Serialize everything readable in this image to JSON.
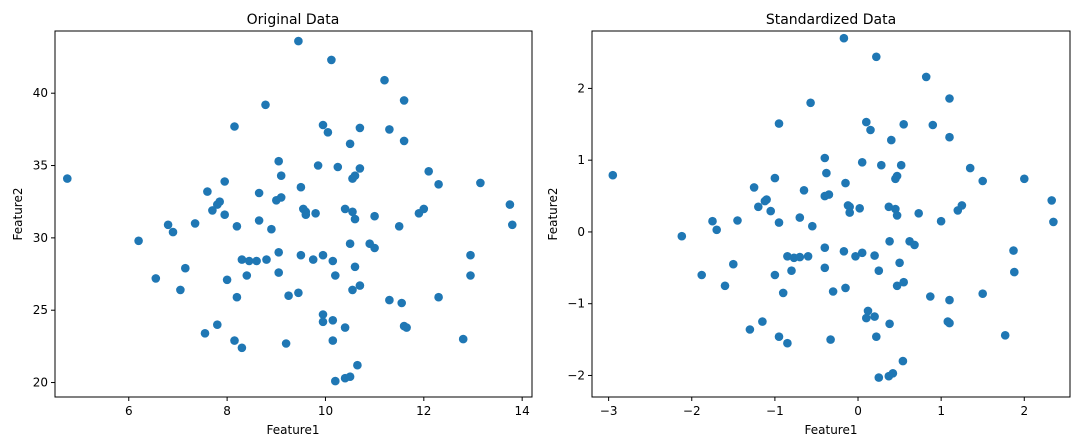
{
  "colors": {
    "marker": "#1f77b4"
  },
  "chart_data": [
    {
      "type": "scatter",
      "title": "Original Data",
      "xlabel": "Feature1",
      "ylabel": "Feature2",
      "xlim": [
        4.5,
        14.2
      ],
      "ylim": [
        19.0,
        44.3
      ],
      "xticks": [
        6,
        8,
        10,
        12,
        14
      ],
      "yticks": [
        20,
        25,
        30,
        35,
        40
      ],
      "grid": false,
      "points": [
        [
          9.45,
          43.6
        ],
        [
          10.12,
          42.3
        ],
        [
          11.2,
          40.9
        ],
        [
          11.6,
          39.5
        ],
        [
          8.78,
          39.2
        ],
        [
          8.15,
          37.7
        ],
        [
          9.95,
          37.8
        ],
        [
          10.05,
          37.3
        ],
        [
          10.7,
          37.6
        ],
        [
          11.3,
          37.5
        ],
        [
          10.5,
          36.5
        ],
        [
          11.6,
          36.7
        ],
        [
          9.05,
          35.3
        ],
        [
          9.85,
          35.0
        ],
        [
          10.25,
          34.9
        ],
        [
          10.7,
          34.8
        ],
        [
          4.75,
          34.1
        ],
        [
          9.1,
          34.3
        ],
        [
          10.55,
          34.1
        ],
        [
          10.6,
          34.3
        ],
        [
          12.1,
          34.6
        ],
        [
          12.3,
          33.7
        ],
        [
          13.15,
          33.8
        ],
        [
          7.95,
          33.9
        ],
        [
          7.6,
          33.2
        ],
        [
          9.5,
          33.5
        ],
        [
          8.65,
          33.1
        ],
        [
          7.85,
          32.5
        ],
        [
          7.8,
          32.3
        ],
        [
          9.0,
          32.6
        ],
        [
          9.1,
          32.8
        ],
        [
          7.7,
          31.9
        ],
        [
          7.95,
          31.6
        ],
        [
          9.6,
          31.8
        ],
        [
          9.8,
          31.7
        ],
        [
          9.55,
          32.0
        ],
        [
          10.4,
          32.0
        ],
        [
          10.55,
          31.8
        ],
        [
          10.6,
          31.3
        ],
        [
          11.0,
          31.5
        ],
        [
          11.9,
          31.7
        ],
        [
          12.0,
          32.0
        ],
        [
          13.75,
          32.3
        ],
        [
          6.8,
          30.9
        ],
        [
          7.35,
          31.0
        ],
        [
          8.2,
          30.8
        ],
        [
          8.65,
          31.2
        ],
        [
          8.9,
          30.6
        ],
        [
          9.6,
          31.6
        ],
        [
          11.5,
          30.8
        ],
        [
          13.8,
          30.9
        ],
        [
          6.9,
          30.4
        ],
        [
          6.2,
          29.8
        ],
        [
          9.05,
          29.0
        ],
        [
          9.5,
          28.8
        ],
        [
          9.95,
          28.8
        ],
        [
          10.5,
          29.6
        ],
        [
          10.9,
          29.6
        ],
        [
          11.0,
          29.3
        ],
        [
          12.95,
          28.8
        ],
        [
          8.3,
          28.5
        ],
        [
          8.45,
          28.4
        ],
        [
          8.6,
          28.4
        ],
        [
          8.8,
          28.5
        ],
        [
          9.75,
          28.5
        ],
        [
          10.15,
          28.4
        ],
        [
          10.6,
          28.0
        ],
        [
          7.15,
          27.9
        ],
        [
          9.05,
          27.6
        ],
        [
          8.4,
          27.4
        ],
        [
          10.2,
          27.4
        ],
        [
          6.55,
          27.2
        ],
        [
          8.0,
          27.1
        ],
        [
          12.95,
          27.4
        ],
        [
          10.7,
          26.7
        ],
        [
          10.55,
          26.4
        ],
        [
          7.05,
          26.4
        ],
        [
          9.45,
          26.2
        ],
        [
          9.25,
          26.0
        ],
        [
          8.2,
          25.9
        ],
        [
          11.3,
          25.7
        ],
        [
          11.55,
          25.5
        ],
        [
          12.3,
          25.9
        ],
        [
          9.95,
          24.7
        ],
        [
          9.95,
          24.2
        ],
        [
          10.15,
          24.3
        ],
        [
          10.4,
          23.8
        ],
        [
          7.8,
          24.0
        ],
        [
          11.6,
          23.9
        ],
        [
          11.65,
          23.8
        ],
        [
          7.55,
          23.4
        ],
        [
          8.15,
          22.9
        ],
        [
          8.3,
          22.4
        ],
        [
          9.2,
          22.7
        ],
        [
          10.15,
          22.9
        ],
        [
          12.8,
          23.0
        ],
        [
          10.65,
          21.2
        ],
        [
          10.2,
          20.1
        ],
        [
          10.4,
          20.3
        ],
        [
          10.5,
          20.4
        ]
      ]
    },
    {
      "type": "scatter",
      "title": "Standardized Data",
      "xlabel": "Feature1",
      "ylabel": "Feature2",
      "xlim": [
        -3.2,
        2.55
      ],
      "ylim": [
        -2.3,
        2.8
      ],
      "xticks": [
        -3,
        -2,
        -1,
        0,
        1,
        2
      ],
      "yticks": [
        -2,
        -1,
        0,
        1,
        2
      ],
      "grid": false,
      "points": [
        [
          -0.17,
          2.7
        ],
        [
          0.22,
          2.44
        ],
        [
          0.82,
          2.16
        ],
        [
          1.1,
          1.86
        ],
        [
          -0.57,
          1.8
        ],
        [
          -0.95,
          1.51
        ],
        [
          0.1,
          1.53
        ],
        [
          0.15,
          1.42
        ],
        [
          0.55,
          1.5
        ],
        [
          0.9,
          1.49
        ],
        [
          0.4,
          1.28
        ],
        [
          1.1,
          1.32
        ],
        [
          -0.4,
          1.03
        ],
        [
          0.05,
          0.97
        ],
        [
          0.28,
          0.93
        ],
        [
          0.52,
          0.93
        ],
        [
          -2.95,
          0.79
        ],
        [
          -0.38,
          0.82
        ],
        [
          0.45,
          0.74
        ],
        [
          0.47,
          0.78
        ],
        [
          1.35,
          0.89
        ],
        [
          1.5,
          0.71
        ],
        [
          2.0,
          0.74
        ],
        [
          -1.0,
          0.75
        ],
        [
          -1.25,
          0.62
        ],
        [
          -0.15,
          0.68
        ],
        [
          -0.65,
          0.58
        ],
        [
          -1.1,
          0.45
        ],
        [
          -1.12,
          0.43
        ],
        [
          -0.4,
          0.5
        ],
        [
          -0.35,
          0.52
        ],
        [
          -1.2,
          0.35
        ],
        [
          -1.05,
          0.29
        ],
        [
          -0.1,
          0.35
        ],
        [
          0.02,
          0.33
        ],
        [
          -0.12,
          0.37
        ],
        [
          0.37,
          0.35
        ],
        [
          0.45,
          0.32
        ],
        [
          0.47,
          0.23
        ],
        [
          0.73,
          0.26
        ],
        [
          1.2,
          0.3
        ],
        [
          1.25,
          0.37
        ],
        [
          2.33,
          0.44
        ],
        [
          -1.75,
          0.15
        ],
        [
          -1.45,
          0.16
        ],
        [
          -0.95,
          0.13
        ],
        [
          -0.7,
          0.2
        ],
        [
          -0.55,
          0.08
        ],
        [
          -0.1,
          0.27
        ],
        [
          1.0,
          0.15
        ],
        [
          2.35,
          0.14
        ],
        [
          -1.7,
          0.03
        ],
        [
          -2.12,
          -0.06
        ],
        [
          -0.4,
          -0.22
        ],
        [
          -0.17,
          -0.27
        ],
        [
          0.05,
          -0.29
        ],
        [
          0.38,
          -0.13
        ],
        [
          0.62,
          -0.13
        ],
        [
          0.68,
          -0.18
        ],
        [
          1.87,
          -0.26
        ],
        [
          -0.85,
          -0.34
        ],
        [
          -0.77,
          -0.36
        ],
        [
          -0.7,
          -0.35
        ],
        [
          -0.6,
          -0.34
        ],
        [
          -0.03,
          -0.34
        ],
        [
          0.2,
          -0.33
        ],
        [
          0.5,
          -0.43
        ],
        [
          -1.5,
          -0.45
        ],
        [
          -0.4,
          -0.5
        ],
        [
          -0.8,
          -0.54
        ],
        [
          0.25,
          -0.54
        ],
        [
          -1.88,
          -0.6
        ],
        [
          -1.0,
          -0.6
        ],
        [
          1.88,
          -0.56
        ],
        [
          0.55,
          -0.7
        ],
        [
          0.47,
          -0.75
        ],
        [
          -1.6,
          -0.75
        ],
        [
          -0.3,
          -0.83
        ],
        [
          -0.15,
          -0.78
        ],
        [
          -0.9,
          -0.85
        ],
        [
          0.87,
          -0.9
        ],
        [
          1.1,
          -0.95
        ],
        [
          1.5,
          -0.86
        ],
        [
          0.12,
          -1.1
        ],
        [
          0.1,
          -1.2
        ],
        [
          0.2,
          -1.18
        ],
        [
          0.38,
          -1.28
        ],
        [
          -1.15,
          -1.25
        ],
        [
          1.08,
          -1.25
        ],
        [
          1.1,
          -1.27
        ],
        [
          -1.3,
          -1.36
        ],
        [
          -0.95,
          -1.46
        ],
        [
          -0.85,
          -1.55
        ],
        [
          -0.33,
          -1.5
        ],
        [
          0.22,
          -1.46
        ],
        [
          1.77,
          -1.44
        ],
        [
          0.54,
          -1.8
        ],
        [
          0.25,
          -2.03
        ],
        [
          0.37,
          -2.01
        ],
        [
          0.42,
          -1.97
        ]
      ]
    }
  ]
}
